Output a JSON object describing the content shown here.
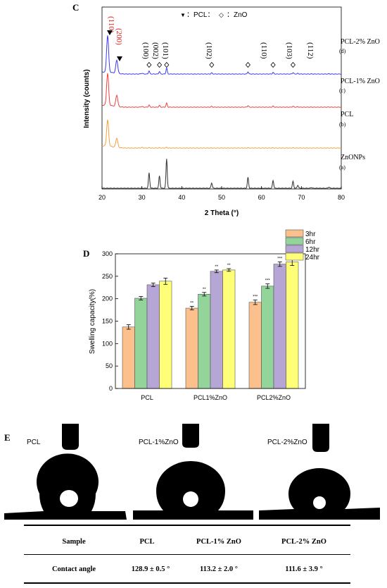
{
  "panels": {
    "c": {
      "letter": "C"
    },
    "d": {
      "letter": "D"
    },
    "e": {
      "letter": "E"
    }
  },
  "xrd": {
    "legend": {
      "pcl_symbol": "▼",
      "pcl_text": "：PCL：",
      "zno_symbol": "◇",
      "zno_text": "：ZnO"
    },
    "xlabel": "2 Theta (°)",
    "ylabel": "Intensity (counts)",
    "xticks": [
      "20",
      "30",
      "40",
      "50",
      "60",
      "70",
      "80"
    ],
    "pcl_peaks": [
      "(110)",
      "(200)"
    ],
    "zno_peaks": [
      "(100)",
      "(002)",
      "(101)",
      "(102)",
      "(110)",
      "(103)",
      "(112)"
    ],
    "traces": [
      {
        "label": "PCL-2% ZnO",
        "tag": "(d)",
        "color": "#3b3bf0"
      },
      {
        "label": "PCL-1% ZnO",
        "tag": "(c)",
        "color": "#f04040"
      },
      {
        "label": "PCL",
        "tag": "(b)",
        "color": "#f5a040"
      },
      {
        "label": "ZnONPs",
        "tag": "(a)",
        "color": "#303030"
      }
    ]
  },
  "chart_data": {
    "type": "bar",
    "title": "",
    "xlabel": "",
    "ylabel": "Swelling capacity(%)",
    "ylim": [
      0,
      300
    ],
    "yticks": [
      "0",
      "50",
      "100",
      "150",
      "200",
      "250",
      "300"
    ],
    "categories": [
      "PCL",
      "PCL1%ZnO",
      "PCL2%ZnO"
    ],
    "legend_position": "top-right",
    "series": [
      {
        "name": "3hr",
        "color": "#fbc08c",
        "values": [
          137,
          179,
          192
        ],
        "errors": [
          5,
          4,
          5
        ],
        "sig": [
          "",
          "**",
          "***"
        ]
      },
      {
        "name": "6hr",
        "color": "#93d49a",
        "values": [
          201,
          210,
          228
        ],
        "errors": [
          4,
          4,
          5
        ],
        "sig": [
          "",
          "**",
          "***"
        ]
      },
      {
        "name": "12hr",
        "color": "#b6a6d6",
        "values": [
          231,
          261,
          277
        ],
        "errors": [
          4,
          3,
          5
        ],
        "sig": [
          "",
          "**",
          "***"
        ]
      },
      {
        "name": "24hr",
        "color": "#ffff77",
        "values": [
          239,
          264,
          282
        ],
        "errors": [
          7,
          3,
          8
        ],
        "sig": [
          "",
          "**",
          "***"
        ]
      }
    ]
  },
  "contact": {
    "drops": [
      {
        "label": "PCL"
      },
      {
        "label": "PCL-1%ZnO"
      },
      {
        "label": "PCL-2%ZnO"
      }
    ],
    "table": {
      "header": [
        "Sample",
        "PCL",
        "PCL-1% ZnO",
        "PCL-2% ZnO"
      ],
      "row": [
        "Contact angle",
        "128.9 ± 0.5 °",
        "113.2 ± 2.0 °",
        "111.6 ± 3.9 °"
      ]
    }
  }
}
